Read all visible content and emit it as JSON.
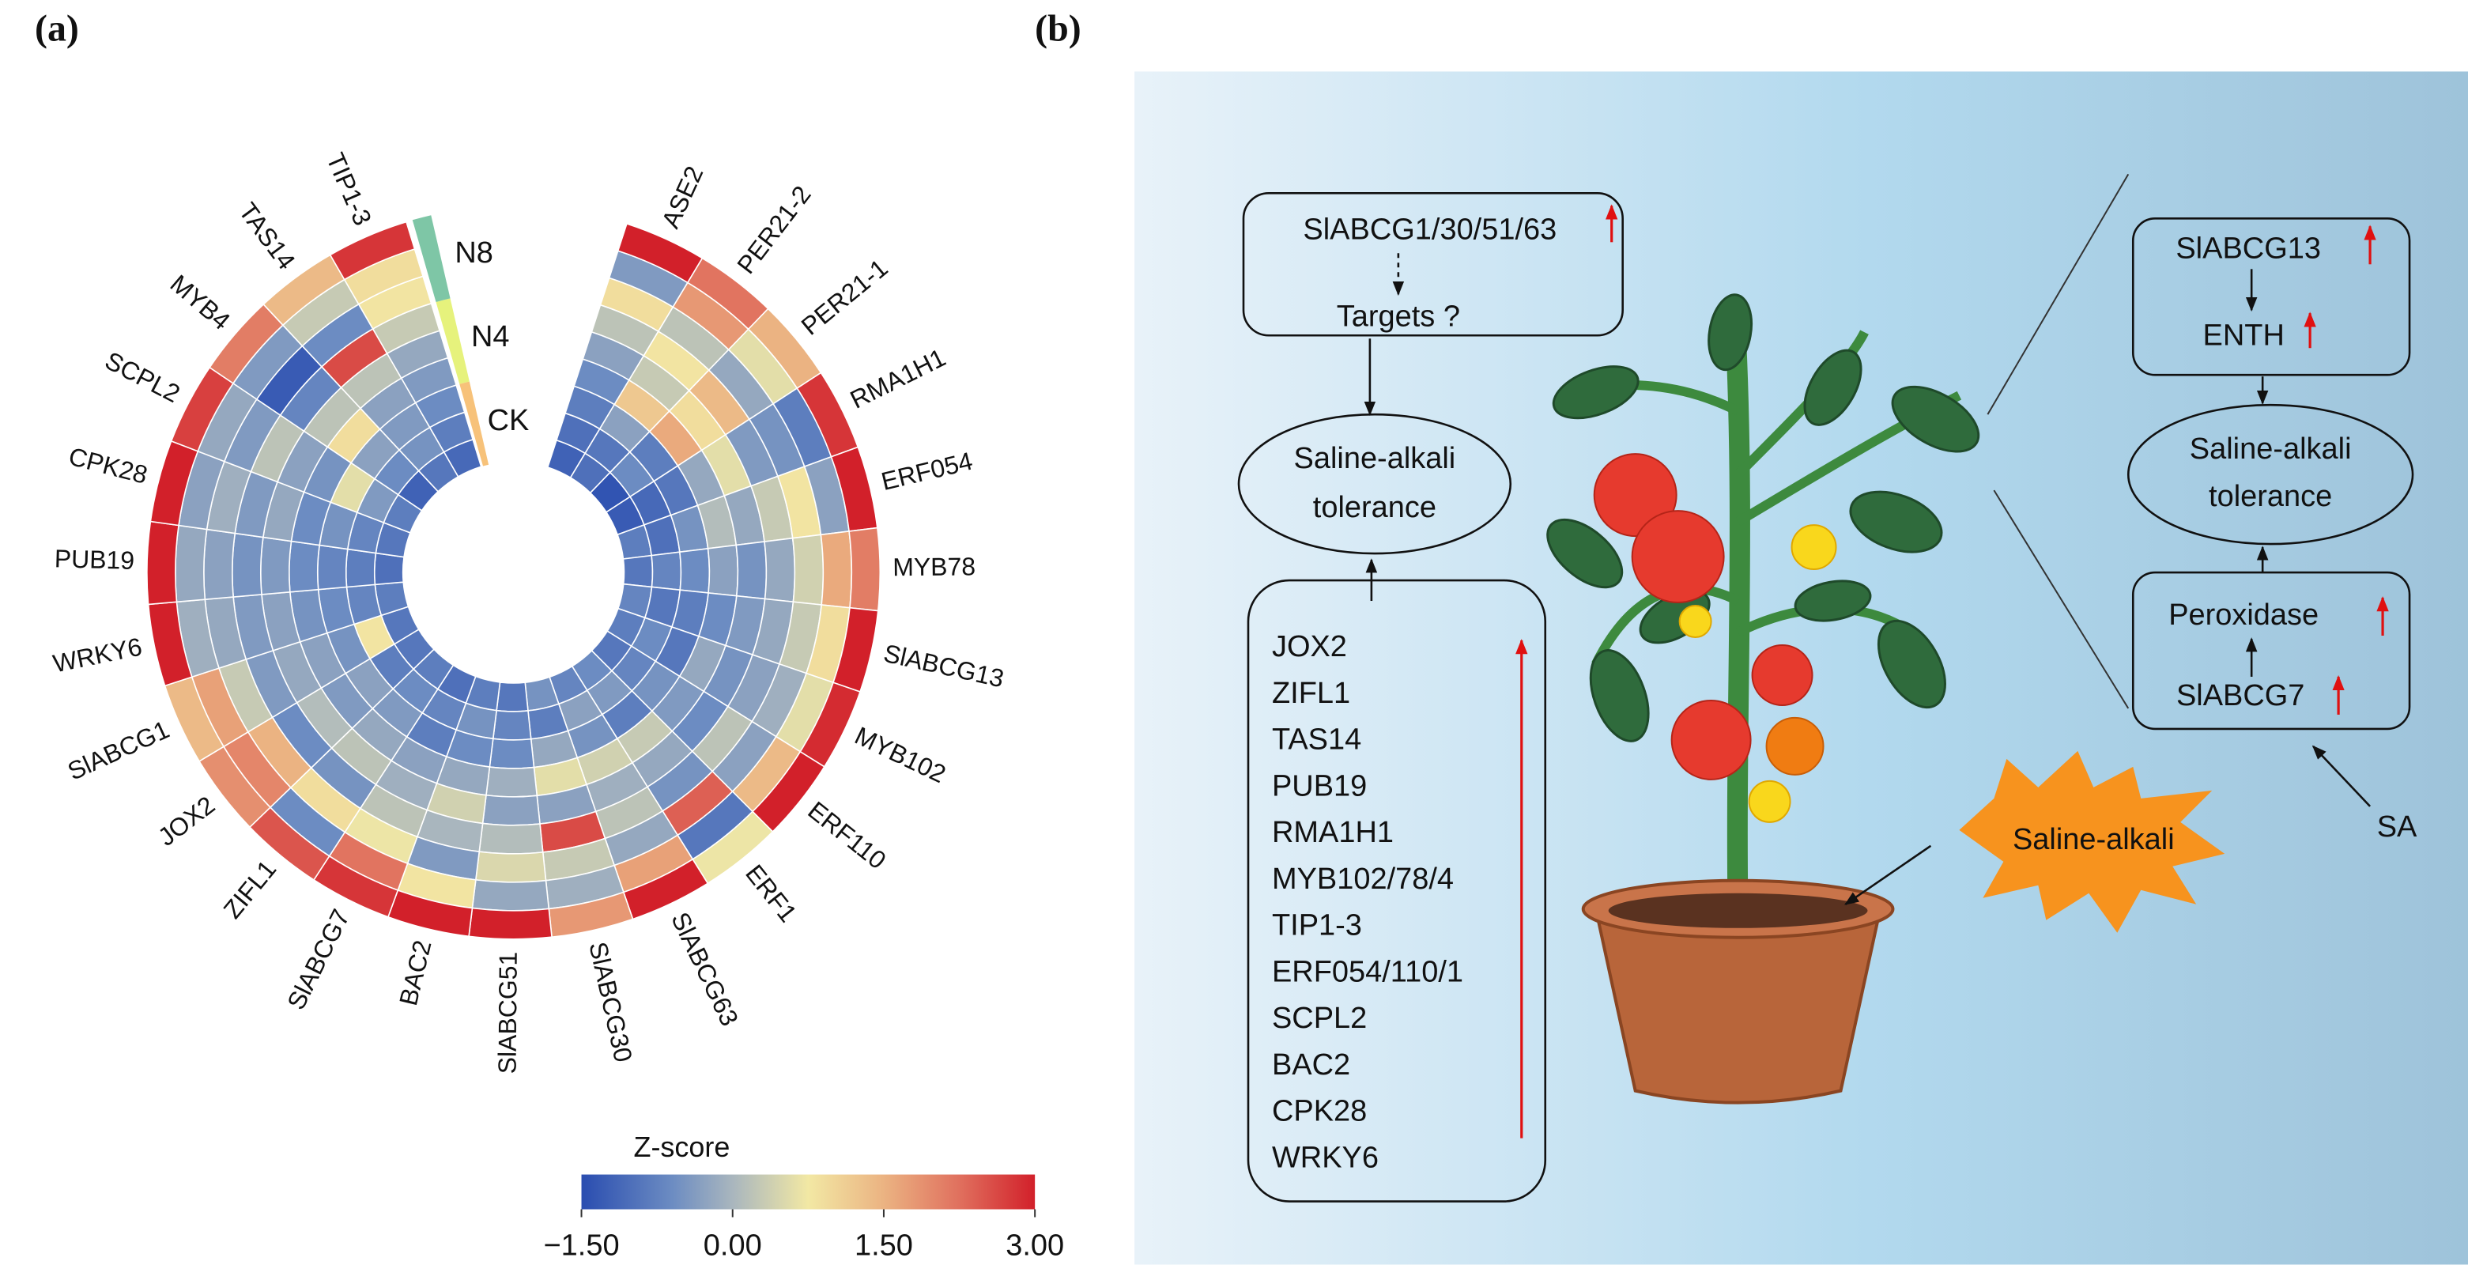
{
  "panel_labels": [
    "(a)",
    "(b)"
  ],
  "chart_data": {
    "type": "circular-heatmap",
    "categories": [
      "ASE2",
      "PER21-2",
      "PER21-1",
      "RMA1H1",
      "ERF054",
      "MYB78",
      "SlABCG13",
      "MYB102",
      "ERF110",
      "ERF1",
      "SlABCG63",
      "SlABCG30",
      "SlABCG51",
      "BAC2",
      "SlABCG7",
      "ZIFL1",
      "JOX2",
      "SlABCG1",
      "WRKY6",
      "PUB19",
      "CPK28",
      "SCPL2",
      "MYB4",
      "TAS14",
      "TIP1-3"
    ],
    "rings": [
      {
        "name": "CK",
        "color": "#f7c27a"
      },
      {
        "name": "N4",
        "color": "#e6f27c"
      },
      {
        "name": "N8",
        "color": "#7ec6a6"
      }
    ],
    "values": [
      [
        -1.2,
        -1.0,
        -0.8,
        -0.6,
        -0.3,
        0.2,
        0.9,
        -0.4,
        3.0
      ],
      [
        -1.0,
        -0.9,
        -0.3,
        1.2,
        0.3,
        0.8,
        0.2,
        1.8,
        2.2
      ],
      [
        -1.4,
        -0.6,
        -0.8,
        1.6,
        0.9,
        1.4,
        -0.2,
        0.6,
        1.5
      ],
      [
        -1.3,
        -1.1,
        -0.9,
        -0.2,
        0.6,
        -0.4,
        -0.5,
        -0.8,
        2.8
      ],
      [
        -0.8,
        -1.0,
        -0.5,
        0.1,
        -0.2,
        0.3,
        0.8,
        -0.3,
        3.0
      ],
      [
        -0.9,
        -0.7,
        -0.6,
        -0.3,
        -0.5,
        -0.2,
        0.4,
        1.6,
        2.1
      ],
      [
        -0.7,
        -0.9,
        -0.8,
        -0.6,
        -0.4,
        -0.2,
        0.3,
        0.9,
        3.0
      ],
      [
        -0.8,
        -0.6,
        -0.9,
        -0.2,
        -0.5,
        -0.3,
        -0.1,
        0.6,
        2.9
      ],
      [
        -0.9,
        -0.7,
        -0.5,
        -0.4,
        -0.6,
        0.2,
        -0.3,
        1.4,
        3.0
      ],
      [
        -0.6,
        -0.4,
        -0.8,
        0.3,
        -0.2,
        -0.5,
        2.4,
        -0.9,
        0.7
      ],
      [
        -0.7,
        -0.3,
        -0.5,
        0.4,
        -0.1,
        0.2,
        -0.2,
        1.7,
        3.0
      ],
      [
        -0.5,
        -0.8,
        -0.2,
        0.6,
        -0.3,
        2.6,
        0.3,
        -0.1,
        1.8
      ],
      [
        -0.9,
        -0.7,
        -0.6,
        -0.1,
        -0.3,
        0.1,
        0.5,
        -0.2,
        3.0
      ],
      [
        -0.8,
        -0.5,
        -0.6,
        -0.2,
        0.4,
        0.0,
        -0.4,
        0.8,
        3.0
      ],
      [
        -1.0,
        -0.7,
        -0.8,
        -0.3,
        -0.1,
        0.2,
        0.7,
        2.2,
        2.8
      ],
      [
        -0.8,
        -0.6,
        -0.4,
        -0.2,
        0.2,
        -0.5,
        0.9,
        -0.6,
        2.5
      ],
      [
        -0.9,
        -0.8,
        -0.3,
        -0.4,
        0.1,
        -0.6,
        1.5,
        2.0,
        1.9
      ],
      [
        -0.9,
        0.8,
        -0.5,
        -0.3,
        -0.2,
        -0.4,
        0.3,
        1.7,
        1.4
      ],
      [
        -0.8,
        -0.7,
        -0.6,
        -0.5,
        -0.3,
        -0.4,
        -0.2,
        -0.1,
        3.0
      ],
      [
        -1.0,
        -0.8,
        -0.7,
        -0.6,
        -0.4,
        -0.5,
        -0.3,
        -0.2,
        3.0
      ],
      [
        -0.9,
        -0.7,
        -0.5,
        -0.6,
        -0.2,
        -0.4,
        -0.1,
        -0.3,
        3.0
      ],
      [
        -0.8,
        -0.4,
        0.6,
        -0.5,
        -0.3,
        0.2,
        -0.4,
        -0.2,
        2.7
      ],
      [
        -1.2,
        -0.6,
        -0.3,
        0.9,
        0.2,
        -0.7,
        -1.3,
        -0.4,
        2.1
      ],
      [
        -0.9,
        -0.5,
        -0.4,
        -0.3,
        0.2,
        2.6,
        -0.6,
        0.3,
        1.4
      ],
      [
        -1.1,
        -0.8,
        -0.6,
        -0.4,
        -0.2,
        0.3,
        0.8,
        0.9,
        2.8
      ]
    ],
    "colorbar": {
      "title": "Z-score",
      "range": [
        -1.5,
        3
      ],
      "ticks": [
        {
          "value": -1.5,
          "label": "−1.50"
        },
        {
          "value": 0,
          "label": "0.00"
        },
        {
          "value": 1.5,
          "label": "1.50"
        },
        {
          "value": 3,
          "label": "3.00"
        }
      ],
      "colorscale": [
        [
          -1.5,
          "#2a4db0"
        ],
        [
          -0.6,
          "#6c8cc2"
        ],
        [
          0,
          "#a9b6be"
        ],
        [
          0.75,
          "#f2e8a4"
        ],
        [
          1.5,
          "#ebb382"
        ],
        [
          2.25,
          "#e0705e"
        ],
        [
          3,
          "#d2202a"
        ]
      ]
    }
  },
  "diagram": {
    "box1": [
      "SlABCG1/30/51/63",
      "Targets ?"
    ],
    "tolerance_left": [
      "Saline-alkali",
      "tolerance"
    ],
    "genes": [
      "JOX2",
      "ZIFL1",
      "TAS14",
      "PUB19",
      "RMA1H1",
      "MYB102/78/4",
      "TIP1-3",
      "ERF054/110/1",
      "SCPL2",
      "BAC2",
      "CPK28",
      "WRKY6"
    ],
    "box2": [
      "SlABCG13",
      "ENTH"
    ],
    "tolerance_right": [
      "Saline-alkali",
      "tolerance"
    ],
    "box3": [
      "Peroxidase",
      "SlABCG7"
    ],
    "stress": "Saline-alkali",
    "signal": "SA"
  }
}
